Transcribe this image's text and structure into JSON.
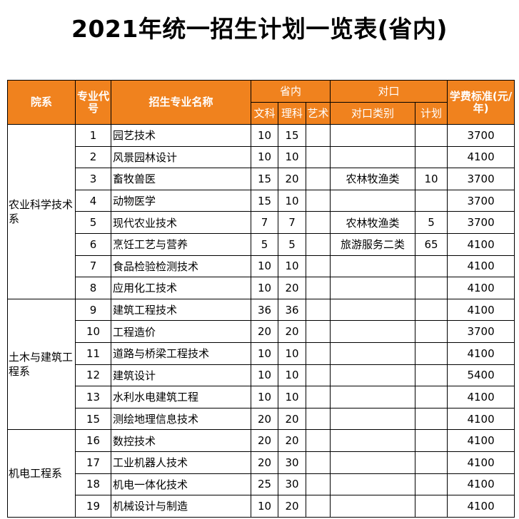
{
  "title": "2021年统一招生计划一览表(省内)",
  "colors": {
    "header_bg": "#f0821e",
    "header_text": "#ffffff"
  },
  "headers": {
    "dept": "院系",
    "code": "专业代号",
    "major": "招生专业名称",
    "province": "省内",
    "arts": "文科",
    "science": "理科",
    "art": "艺术",
    "duikou": "对口",
    "duikou_category": "对口类别",
    "duikou_plan": "计划",
    "fee": "学费标准(元/年)"
  },
  "departments": [
    {
      "name": "农业科学技术系",
      "rows": [
        {
          "code": "1",
          "major": "园艺技术",
          "arts": "10",
          "science": "15",
          "art": "",
          "category": "",
          "plan": "",
          "fee": "3700"
        },
        {
          "code": "2",
          "major": "风景园林设计",
          "arts": "10",
          "science": "10",
          "art": "",
          "category": "",
          "plan": "",
          "fee": "4100"
        },
        {
          "code": "3",
          "major": "畜牧兽医",
          "arts": "15",
          "science": "20",
          "art": "",
          "category": "农林牧渔类",
          "plan": "10",
          "fee": "3700"
        },
        {
          "code": "4",
          "major": "动物医学",
          "arts": "15",
          "science": "10",
          "art": "",
          "category": "",
          "plan": "",
          "fee": "3700"
        },
        {
          "code": "5",
          "major": "现代农业技术",
          "arts": "7",
          "science": "7",
          "art": "",
          "category": "农林牧渔类",
          "plan": "5",
          "fee": "3700"
        },
        {
          "code": "6",
          "major": "烹饪工艺与营养",
          "arts": "5",
          "science": "5",
          "art": "",
          "category": "旅游服务二类",
          "plan": "65",
          "fee": "4100"
        },
        {
          "code": "7",
          "major": "食品检验检测技术",
          "arts": "10",
          "science": "10",
          "art": "",
          "category": "",
          "plan": "",
          "fee": "4100"
        },
        {
          "code": "8",
          "major": "应用化工技术",
          "arts": "10",
          "science": "20",
          "art": "",
          "category": "",
          "plan": "",
          "fee": "4100"
        }
      ]
    },
    {
      "name": "土木与建筑工程系",
      "rows": [
        {
          "code": "9",
          "major": "建筑工程技术",
          "arts": "36",
          "science": "36",
          "art": "",
          "category": "",
          "plan": "",
          "fee": "4100"
        },
        {
          "code": "10",
          "major": "工程造价",
          "arts": "20",
          "science": "20",
          "art": "",
          "category": "",
          "plan": "",
          "fee": "3700"
        },
        {
          "code": "11",
          "major": "道路与桥梁工程技术",
          "arts": "10",
          "science": "10",
          "art": "",
          "category": "",
          "plan": "",
          "fee": "4100"
        },
        {
          "code": "12",
          "major": "建筑设计",
          "arts": "10",
          "science": "10",
          "art": "",
          "category": "",
          "plan": "",
          "fee": "5400"
        },
        {
          "code": "13",
          "major": "水利水电建筑工程",
          "arts": "10",
          "science": "10",
          "art": "",
          "category": "",
          "plan": "",
          "fee": "4100"
        },
        {
          "code": "15",
          "major": "测绘地理信息技术",
          "arts": "20",
          "science": "20",
          "art": "",
          "category": "",
          "plan": "",
          "fee": "4100"
        }
      ]
    },
    {
      "name": "机电工程系",
      "rows": [
        {
          "code": "16",
          "major": "数控技术",
          "arts": "20",
          "science": "20",
          "art": "",
          "category": "",
          "plan": "",
          "fee": "4100"
        },
        {
          "code": "17",
          "major": "工业机器人技术",
          "arts": "20",
          "science": "30",
          "art": "",
          "category": "",
          "plan": "",
          "fee": "4100"
        },
        {
          "code": "18",
          "major": "机电一体化技术",
          "arts": "25",
          "science": "30",
          "art": "",
          "category": "",
          "plan": "",
          "fee": "4100"
        },
        {
          "code": "19",
          "major": "机械设计与制造",
          "arts": "10",
          "science": "20",
          "art": "",
          "category": "",
          "plan": "",
          "fee": "4100"
        }
      ]
    }
  ]
}
